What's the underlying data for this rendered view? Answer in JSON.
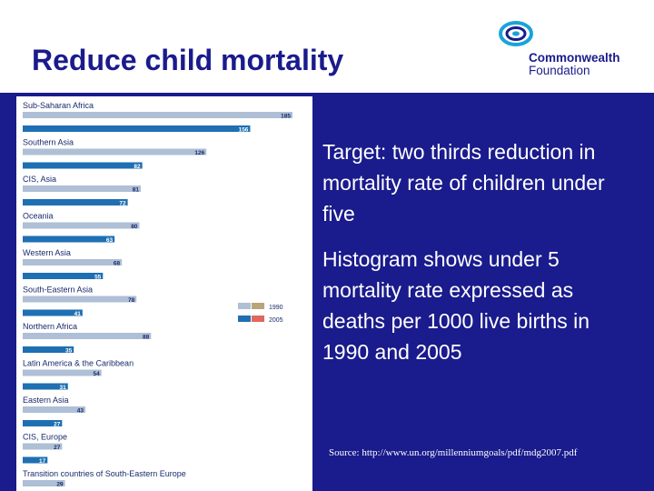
{
  "title": "Reduce child mortality",
  "logo": {
    "line1": "Commonwealth",
    "line2": "Foundation",
    "accent_color": "#19a4d8",
    "text_color": "#1a1b8c"
  },
  "text": {
    "p1": "Target: two thirds reduction in mortality rate of children under five",
    "p2": "Histogram shows under 5 mortality rate expressed as deaths per 1000 live births in 1990 and 2005",
    "source": "Source: http://www.un.org/millenniumgoals/pdf/mdg2007.pdf"
  },
  "chart_data": {
    "type": "bar",
    "orientation": "horizontal",
    "title": "",
    "xlabel": "",
    "ylabel": "",
    "xlim": [
      0,
      185
    ],
    "categories": [
      "Sub-Saharan Africa",
      "Southern Asia",
      "CIS, Asia",
      "Oceania",
      "Western Asia",
      "South-Eastern Asia",
      "Northern Africa",
      "Latin America & the Caribbean",
      "Eastern Asia",
      "CIS, Europe",
      "Transition countries of South-Eastern Europe"
    ],
    "series": [
      {
        "name": "1990",
        "color": "#aebfd6",
        "values": [
          185,
          126,
          81,
          80,
          68,
          78,
          88,
          54,
          43,
          27,
          29
        ]
      },
      {
        "name": "2005",
        "color": "#1f6fb3",
        "values": [
          156,
          82,
          72,
          63,
          55,
          41,
          35,
          31,
          27,
          17,
          null
        ]
      }
    ],
    "legend": {
      "position": "right",
      "entries": [
        {
          "label": "1990",
          "colors": [
            "#aebfd6",
            "#b8a57a"
          ]
        },
        {
          "label": "2005",
          "colors": [
            "#1f6fb3",
            "#e0675d"
          ]
        }
      ]
    }
  }
}
